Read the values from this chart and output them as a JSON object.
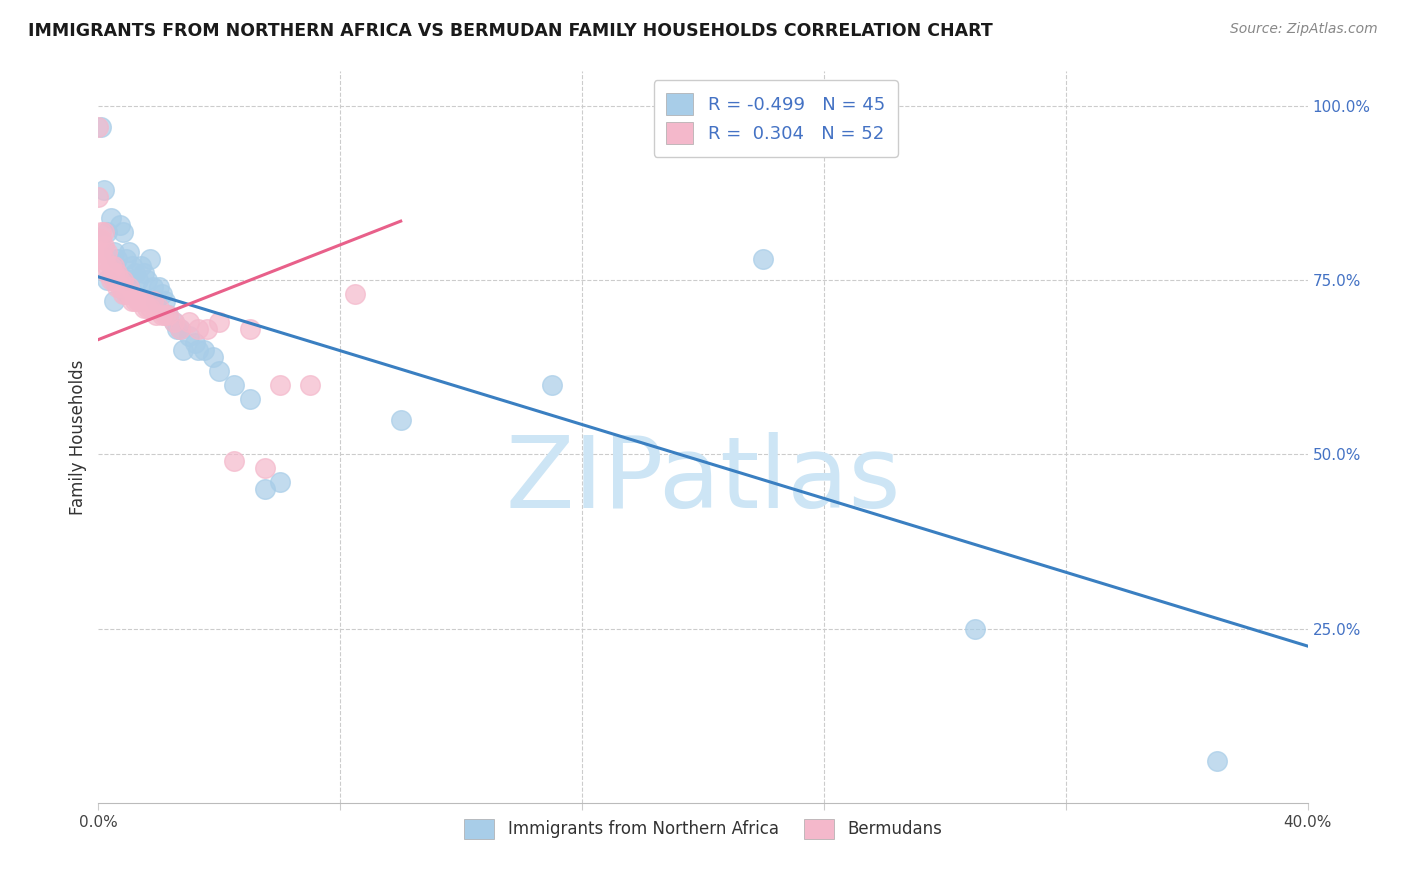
{
  "title": "IMMIGRANTS FROM NORTHERN AFRICA VS BERMUDAN FAMILY HOUSEHOLDS CORRELATION CHART",
  "source": "Source: ZipAtlas.com",
  "ylabel": "Family Households",
  "xlim": [
    0.0,
    0.4
  ],
  "ylim": [
    0.0,
    1.05
  ],
  "blue_R": "-0.499",
  "blue_N": "45",
  "pink_R": "0.304",
  "pink_N": "52",
  "blue_scatter_x": [
    0.001,
    0.002,
    0.003,
    0.003,
    0.004,
    0.005,
    0.005,
    0.006,
    0.007,
    0.008,
    0.009,
    0.01,
    0.01,
    0.011,
    0.012,
    0.013,
    0.014,
    0.015,
    0.016,
    0.017,
    0.018,
    0.019,
    0.02,
    0.021,
    0.022,
    0.023,
    0.025,
    0.026,
    0.027,
    0.028,
    0.03,
    0.032,
    0.033,
    0.035,
    0.038,
    0.04,
    0.045,
    0.05,
    0.055,
    0.06,
    0.1,
    0.15,
    0.22,
    0.29,
    0.37
  ],
  "blue_scatter_y": [
    0.97,
    0.88,
    0.82,
    0.75,
    0.84,
    0.79,
    0.72,
    0.78,
    0.83,
    0.82,
    0.78,
    0.79,
    0.75,
    0.77,
    0.76,
    0.75,
    0.77,
    0.76,
    0.75,
    0.78,
    0.74,
    0.72,
    0.74,
    0.73,
    0.72,
    0.7,
    0.69,
    0.68,
    0.68,
    0.65,
    0.67,
    0.66,
    0.65,
    0.65,
    0.64,
    0.62,
    0.6,
    0.58,
    0.45,
    0.46,
    0.55,
    0.6,
    0.78,
    0.25,
    0.06
  ],
  "pink_scatter_x": [
    0.0,
    0.0,
    0.001,
    0.001,
    0.001,
    0.001,
    0.002,
    0.002,
    0.002,
    0.003,
    0.003,
    0.003,
    0.004,
    0.004,
    0.005,
    0.005,
    0.005,
    0.006,
    0.006,
    0.007,
    0.007,
    0.008,
    0.008,
    0.009,
    0.01,
    0.01,
    0.011,
    0.012,
    0.013,
    0.014,
    0.015,
    0.015,
    0.016,
    0.017,
    0.018,
    0.019,
    0.02,
    0.021,
    0.022,
    0.023,
    0.025,
    0.027,
    0.03,
    0.033,
    0.036,
    0.04,
    0.045,
    0.05,
    0.055,
    0.06,
    0.07,
    0.085
  ],
  "pink_scatter_y": [
    0.97,
    0.87,
    0.82,
    0.81,
    0.79,
    0.78,
    0.82,
    0.8,
    0.78,
    0.79,
    0.77,
    0.76,
    0.77,
    0.75,
    0.77,
    0.76,
    0.75,
    0.76,
    0.74,
    0.75,
    0.74,
    0.75,
    0.73,
    0.73,
    0.74,
    0.73,
    0.72,
    0.72,
    0.72,
    0.72,
    0.72,
    0.71,
    0.71,
    0.71,
    0.72,
    0.7,
    0.71,
    0.7,
    0.7,
    0.7,
    0.69,
    0.68,
    0.69,
    0.68,
    0.68,
    0.69,
    0.49,
    0.68,
    0.48,
    0.6,
    0.6,
    0.73
  ],
  "blue_line_x": [
    0.0,
    0.4
  ],
  "blue_line_y": [
    0.755,
    0.225
  ],
  "pink_line_x": [
    0.0,
    0.1
  ],
  "pink_line_y": [
    0.665,
    0.835
  ],
  "blue_color": "#a8cde8",
  "pink_color": "#f4b8cb",
  "blue_line_color": "#3a7fc1",
  "pink_line_color": "#e8608a",
  "grid_color": "#cccccc",
  "watermark_text": "ZIPatlas",
  "watermark_color": "#cde5f5"
}
